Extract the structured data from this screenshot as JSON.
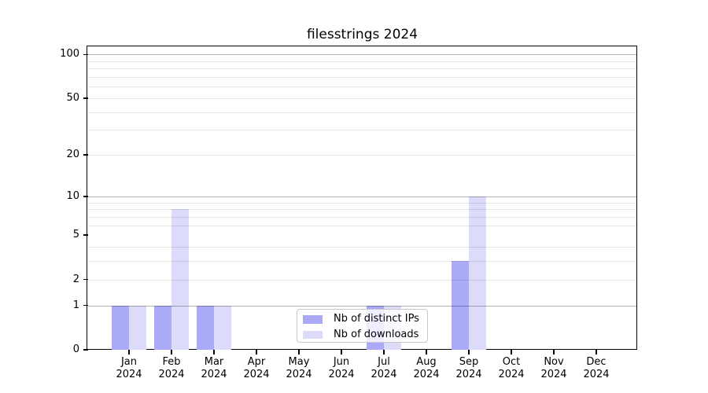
{
  "title": "filesstrings 2024",
  "legend": {
    "items": [
      {
        "label": "Nb of distinct IPs",
        "color": "#aaaaf8"
      },
      {
        "label": "Nb of downloads",
        "color": "#dcdcfa"
      }
    ]
  },
  "chart_data": {
    "type": "bar",
    "title": "filesstrings 2024",
    "categories": [
      {
        "month": "Jan",
        "year": "2024"
      },
      {
        "month": "Feb",
        "year": "2024"
      },
      {
        "month": "Mar",
        "year": "2024"
      },
      {
        "month": "Apr",
        "year": "2024"
      },
      {
        "month": "May",
        "year": "2024"
      },
      {
        "month": "Jun",
        "year": "2024"
      },
      {
        "month": "Jul",
        "year": "2024"
      },
      {
        "month": "Aug",
        "year": "2024"
      },
      {
        "month": "Sep",
        "year": "2024"
      },
      {
        "month": "Oct",
        "year": "2024"
      },
      {
        "month": "Nov",
        "year": "2024"
      },
      {
        "month": "Dec",
        "year": "2024"
      }
    ],
    "series": [
      {
        "name": "Nb of distinct IPs",
        "color": "#aaaaf8",
        "values": [
          1,
          1,
          1,
          0,
          0,
          0,
          1,
          0,
          3,
          0,
          0,
          0
        ]
      },
      {
        "name": "Nb of downloads",
        "color": "#dcdcfa",
        "values": [
          1,
          8,
          1,
          0,
          0,
          0,
          1,
          0,
          10,
          0,
          0,
          0
        ]
      }
    ],
    "yscale": "log1p",
    "ylim": [
      0,
      113
    ],
    "yticks": [
      0,
      1,
      2,
      5,
      10,
      20,
      50,
      100
    ],
    "ytick_labels": [
      "0",
      "1",
      "2",
      "5",
      "10",
      "20",
      "50",
      "100"
    ],
    "ymajor_gridlines": [
      1,
      10,
      100
    ],
    "yminor_gridlines": [
      2,
      3,
      4,
      6,
      7,
      8,
      9,
      20,
      30,
      40,
      50,
      60,
      70,
      80,
      90
    ],
    "grid": true,
    "legend_position": "lower center",
    "colors": {
      "major_grid": "rgba(0,0,0,0.30)",
      "minor_grid": "rgba(0,0,0,0.10)",
      "spine": "#000000",
      "background": "#ffffff"
    }
  }
}
